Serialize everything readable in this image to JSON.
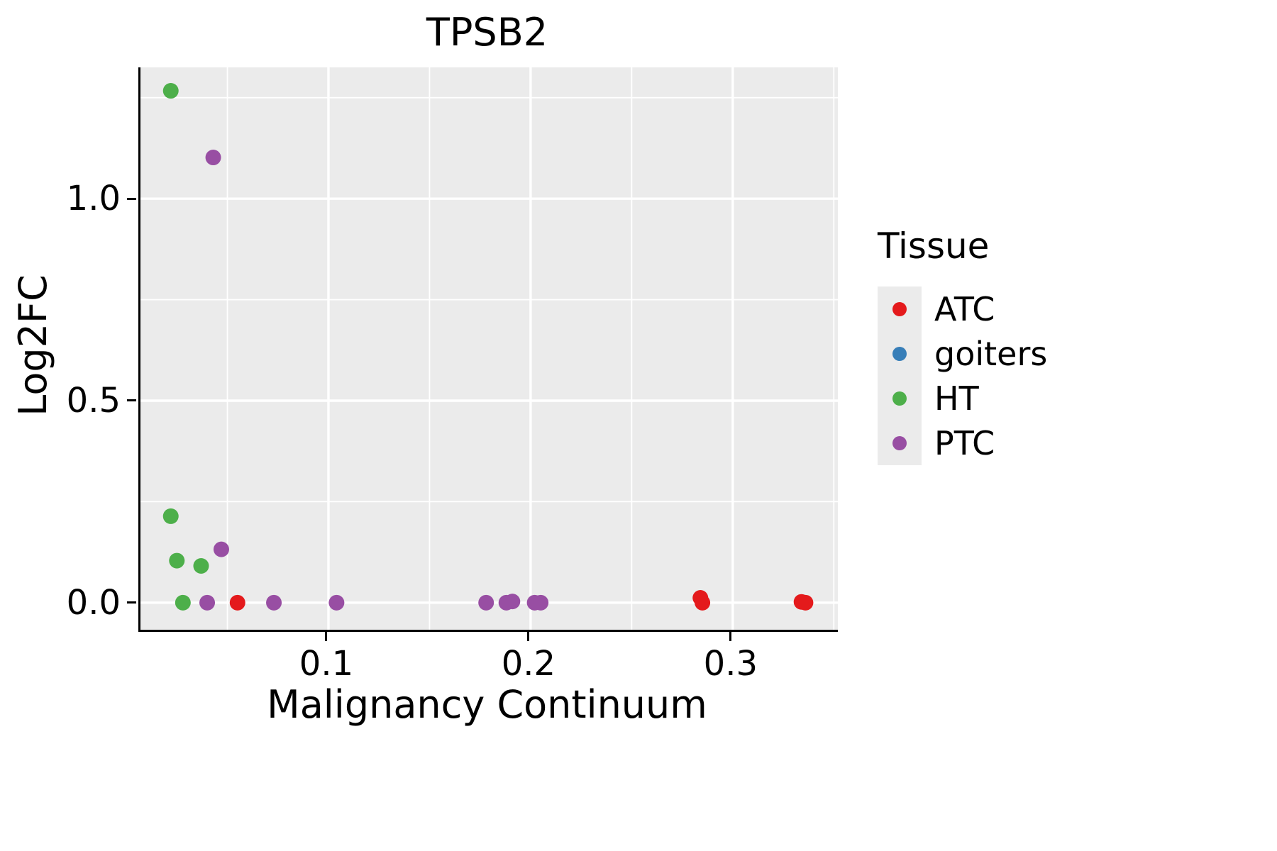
{
  "figure": {
    "title": "TPSB2"
  },
  "chart_data": {
    "type": "scatter",
    "title": "TPSB2",
    "xlabel": "Malignancy Continuum",
    "ylabel": "Log2FC",
    "xlim": [
      0.007,
      0.352
    ],
    "ylim": [
      -0.067,
      1.325
    ],
    "xticks": [
      0.1,
      0.2,
      0.3
    ],
    "xtick_labels": [
      "0.1",
      "0.2",
      "0.3"
    ],
    "yticks": [
      0.0,
      0.5,
      1.0
    ],
    "ytick_labels": [
      "0.0",
      "0.5",
      "1.0"
    ],
    "minor_xticks": [
      0.05,
      0.15,
      0.25,
      0.35
    ],
    "minor_yticks": [
      0.25,
      0.75,
      1.25
    ],
    "grid": "on",
    "panel_background": "#EBEBEB",
    "grid_color": "#FFFFFF",
    "legend_title": "Tissue",
    "legend_position": "right",
    "series": [
      {
        "name": "ATC",
        "color": "#E41A1C",
        "points": [
          [
            0.055,
            0.0
          ],
          [
            0.284,
            0.012
          ],
          [
            0.285,
            0.0
          ],
          [
            0.334,
            0.002
          ],
          [
            0.336,
            0.0
          ]
        ]
      },
      {
        "name": "goiters",
        "color": "#377EB8",
        "points": []
      },
      {
        "name": "HT",
        "color": "#4DAF4A",
        "points": [
          [
            0.022,
            1.267
          ],
          [
            0.022,
            0.214
          ],
          [
            0.025,
            0.104
          ],
          [
            0.037,
            0.091
          ],
          [
            0.028,
            0.0
          ]
        ]
      },
      {
        "name": "PTC",
        "color": "#984EA3",
        "points": [
          [
            0.043,
            1.102
          ],
          [
            0.047,
            0.132
          ],
          [
            0.04,
            0.0
          ],
          [
            0.073,
            0.0
          ],
          [
            0.104,
            0.0
          ],
          [
            0.178,
            0.0
          ],
          [
            0.188,
            0.0
          ],
          [
            0.191,
            0.003
          ],
          [
            0.202,
            0.0
          ],
          [
            0.205,
            0.0
          ]
        ]
      }
    ]
  }
}
